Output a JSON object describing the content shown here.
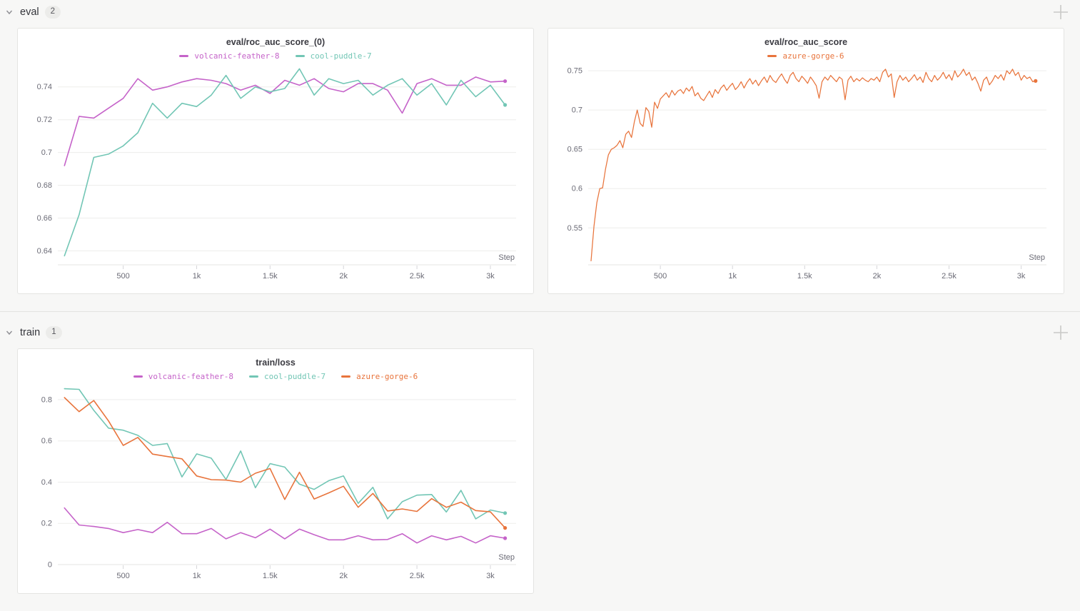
{
  "sections": [
    {
      "title": "eval",
      "count": "2"
    },
    {
      "title": "train",
      "count": "1"
    }
  ],
  "colors": {
    "volcanic_feather_8": "#c563c9",
    "cool_puddle_7": "#72c6b5",
    "azure_gorge_6": "#e8743c",
    "grid": "#ededec",
    "axis": "#e5e5e3",
    "tick_text": "#6b6b76"
  },
  "charts": [
    {
      "panel_title": "eval/roc_auc_score_(0)",
      "type": "line",
      "x_axis_label": "Step",
      "x_domain": [
        55,
        3175
      ],
      "y_domain": [
        0.6315,
        0.7525
      ],
      "x_ticks": [
        {
          "v": 500,
          "t": "500"
        },
        {
          "v": 1000,
          "t": "1k"
        },
        {
          "v": 1500,
          "t": "1.5k"
        },
        {
          "v": 2000,
          "t": "2k"
        },
        {
          "v": 2500,
          "t": "2.5k"
        },
        {
          "v": 3000,
          "t": "3k"
        }
      ],
      "y_ticks": [
        {
          "v": 0.64,
          "t": "0.64"
        },
        {
          "v": 0.66,
          "t": "0.66"
        },
        {
          "v": 0.68,
          "t": "0.68"
        },
        {
          "v": 0.7,
          "t": "0.7"
        },
        {
          "v": 0.72,
          "t": "0.72"
        },
        {
          "v": 0.74,
          "t": "0.74"
        }
      ],
      "series": [
        {
          "name": "volcanic-feather-8",
          "color": "#c563c9",
          "x_start": 100,
          "x_step": 100,
          "values": [
            0.692,
            0.722,
            0.721,
            0.727,
            0.733,
            0.745,
            0.738,
            0.74,
            0.743,
            0.745,
            0.744,
            0.742,
            0.738,
            0.741,
            0.736,
            0.744,
            0.741,
            0.745,
            0.739,
            0.737,
            0.742,
            0.742,
            0.738,
            0.724,
            0.742,
            0.745,
            0.741,
            0.741,
            0.746,
            0.743,
            0.7435
          ]
        },
        {
          "name": "cool-puddle-7",
          "color": "#72c6b5",
          "x_start": 100,
          "x_step": 100,
          "values": [
            0.637,
            0.662,
            0.697,
            0.699,
            0.704,
            0.712,
            0.73,
            0.721,
            0.73,
            0.728,
            0.735,
            0.747,
            0.733,
            0.74,
            0.737,
            0.739,
            0.751,
            0.735,
            0.745,
            0.742,
            0.744,
            0.735,
            0.741,
            0.745,
            0.735,
            0.742,
            0.729,
            0.744,
            0.734,
            0.741,
            0.729
          ]
        }
      ]
    },
    {
      "panel_title": "eval/roc_auc_score",
      "type": "line",
      "x_axis_label": "Step",
      "x_domain": [
        0,
        3175
      ],
      "y_domain": [
        0.503,
        0.7555
      ],
      "x_ticks": [
        {
          "v": 500,
          "t": "500"
        },
        {
          "v": 1000,
          "t": "1k"
        },
        {
          "v": 1500,
          "t": "1.5k"
        },
        {
          "v": 2000,
          "t": "2k"
        },
        {
          "v": 2500,
          "t": "2.5k"
        },
        {
          "v": 3000,
          "t": "3k"
        }
      ],
      "y_ticks": [
        {
          "v": 0.55,
          "t": "0.55"
        },
        {
          "v": 0.6,
          "t": "0.6"
        },
        {
          "v": 0.65,
          "t": "0.65"
        },
        {
          "v": 0.7,
          "t": "0.7"
        },
        {
          "v": 0.75,
          "t": "0.75"
        }
      ],
      "series": [
        {
          "name": "azure-gorge-6",
          "color": "#e8743c",
          "stroke_width": 1.25,
          "x_start": 20,
          "x_step": 20,
          "values": [
            0.508,
            0.552,
            0.582,
            0.6,
            0.601,
            0.625,
            0.643,
            0.65,
            0.652,
            0.655,
            0.661,
            0.652,
            0.669,
            0.673,
            0.665,
            0.685,
            0.7,
            0.683,
            0.679,
            0.703,
            0.698,
            0.678,
            0.71,
            0.702,
            0.714,
            0.718,
            0.722,
            0.716,
            0.725,
            0.719,
            0.724,
            0.726,
            0.721,
            0.728,
            0.724,
            0.73,
            0.718,
            0.722,
            0.715,
            0.712,
            0.718,
            0.724,
            0.716,
            0.726,
            0.721,
            0.728,
            0.732,
            0.725,
            0.73,
            0.734,
            0.726,
            0.73,
            0.736,
            0.728,
            0.735,
            0.74,
            0.733,
            0.738,
            0.731,
            0.737,
            0.742,
            0.735,
            0.744,
            0.738,
            0.735,
            0.741,
            0.746,
            0.739,
            0.734,
            0.744,
            0.748,
            0.74,
            0.736,
            0.743,
            0.739,
            0.734,
            0.742,
            0.737,
            0.731,
            0.715,
            0.736,
            0.742,
            0.738,
            0.744,
            0.74,
            0.736,
            0.742,
            0.739,
            0.713,
            0.738,
            0.743,
            0.736,
            0.74,
            0.737,
            0.741,
            0.738,
            0.736,
            0.74,
            0.738,
            0.742,
            0.736,
            0.748,
            0.752,
            0.742,
            0.746,
            0.716,
            0.736,
            0.744,
            0.738,
            0.742,
            0.736,
            0.74,
            0.745,
            0.738,
            0.742,
            0.735,
            0.748,
            0.74,
            0.736,
            0.744,
            0.738,
            0.742,
            0.748,
            0.74,
            0.745,
            0.738,
            0.75,
            0.742,
            0.746,
            0.752,
            0.744,
            0.748,
            0.738,
            0.742,
            0.734,
            0.724,
            0.738,
            0.742,
            0.732,
            0.737,
            0.744,
            0.74,
            0.745,
            0.738,
            0.75,
            0.746,
            0.752,
            0.744,
            0.748,
            0.738,
            0.744,
            0.74,
            0.742,
            0.736,
            0.737
          ]
        }
      ]
    },
    {
      "panel_title": "train/loss",
      "type": "line",
      "x_axis_label": "Step",
      "x_domain": [
        55,
        3175
      ],
      "y_domain": [
        0,
        0.862
      ],
      "x_ticks": [
        {
          "v": 500,
          "t": "500"
        },
        {
          "v": 1000,
          "t": "1k"
        },
        {
          "v": 1500,
          "t": "1.5k"
        },
        {
          "v": 2000,
          "t": "2k"
        },
        {
          "v": 2500,
          "t": "2.5k"
        },
        {
          "v": 3000,
          "t": "3k"
        }
      ],
      "y_ticks": [
        {
          "v": 0,
          "t": "0"
        },
        {
          "v": 0.2,
          "t": "0.2"
        },
        {
          "v": 0.4,
          "t": "0.4"
        },
        {
          "v": 0.6,
          "t": "0.6"
        },
        {
          "v": 0.8,
          "t": "0.8"
        }
      ],
      "series": [
        {
          "name": "volcanic-feather-8",
          "color": "#c563c9",
          "x_start": 100,
          "x_step": 100,
          "values": [
            0.275,
            0.192,
            0.185,
            0.175,
            0.155,
            0.17,
            0.155,
            0.205,
            0.15,
            0.15,
            0.175,
            0.125,
            0.155,
            0.13,
            0.172,
            0.125,
            0.172,
            0.145,
            0.12,
            0.12,
            0.14,
            0.12,
            0.122,
            0.15,
            0.105,
            0.14,
            0.12,
            0.137,
            0.105,
            0.14,
            0.128
          ]
        },
        {
          "name": "cool-puddle-7",
          "color": "#72c6b5",
          "x_start": 100,
          "x_step": 100,
          "values": [
            0.853,
            0.85,
            0.748,
            0.662,
            0.652,
            0.627,
            0.578,
            0.587,
            0.425,
            0.537,
            0.516,
            0.413,
            0.551,
            0.373,
            0.49,
            0.473,
            0.39,
            0.365,
            0.407,
            0.43,
            0.297,
            0.375,
            0.222,
            0.305,
            0.337,
            0.34,
            0.255,
            0.36,
            0.222,
            0.265,
            0.25
          ]
        },
        {
          "name": "azure-gorge-6",
          "color": "#e8743c",
          "x_start": 100,
          "x_step": 100,
          "values": [
            0.81,
            0.742,
            0.796,
            0.697,
            0.578,
            0.617,
            0.536,
            0.524,
            0.513,
            0.43,
            0.412,
            0.41,
            0.4,
            0.443,
            0.466,
            0.316,
            0.448,
            0.318,
            0.348,
            0.38,
            0.278,
            0.345,
            0.26,
            0.27,
            0.258,
            0.32,
            0.278,
            0.303,
            0.262,
            0.256,
            0.178
          ]
        }
      ]
    }
  ]
}
